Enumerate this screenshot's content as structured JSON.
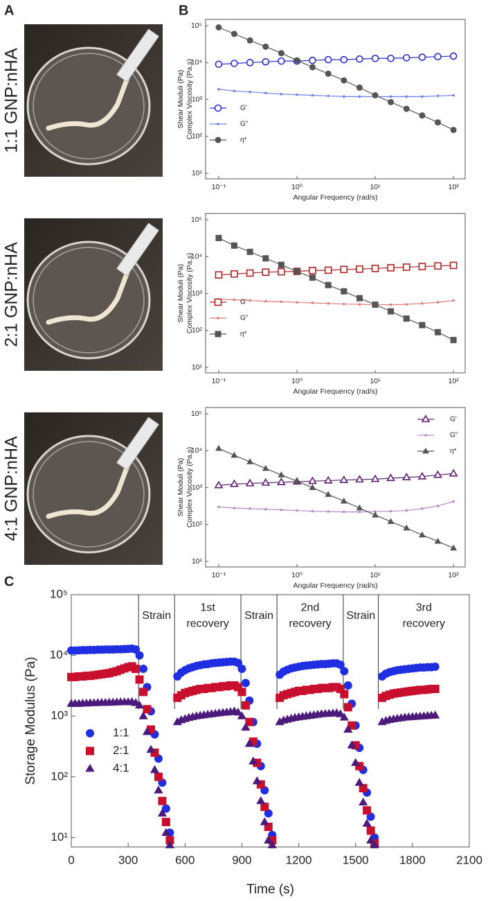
{
  "photos": {
    "panel_label": "A",
    "rows": [
      "1:1 GNP:nHA",
      "2:1 GNP:nHA",
      "4:1 GNP:nHA"
    ]
  },
  "chart_data": [
    {
      "type": "line",
      "panel_label": "B",
      "x_label": "Angular Frequency (rad/s)",
      "y_label": [
        "Shear Moduli (Pa)",
        "Complex Viscosity (Pa.s)"
      ],
      "log_x": true,
      "log_y": true,
      "xlim": [
        0.068,
        141
      ],
      "ylim": [
        7.1,
        148000
      ],
      "xticks": [
        {
          "value": 0.1,
          "label": "10⁻¹"
        },
        {
          "value": 1,
          "label": "10⁰"
        },
        {
          "value": 10,
          "label": "10¹"
        },
        {
          "value": 100,
          "label": "10²"
        }
      ],
      "yticks": [
        {
          "value": 10,
          "label": "10¹"
        },
        {
          "value": 100,
          "label": "10²"
        },
        {
          "value": 1000,
          "label": "10³"
        },
        {
          "value": 10000,
          "label": "10⁴"
        },
        {
          "value": 100000,
          "label": "10⁵"
        }
      ],
      "legend": "lower left",
      "x": [
        0.1,
        0.158,
        0.251,
        0.398,
        0.631,
        1,
        1.58,
        2.51,
        3.98,
        6.31,
        10,
        15.8,
        25.1,
        39.8,
        63.1,
        100
      ],
      "series": [
        {
          "name": "G'",
          "color": "#2b2bd6",
          "marker": "circle-open",
          "values": [
            9000,
            9500,
            10000,
            10500,
            11000,
            11000,
            11500,
            12000,
            12000,
            12500,
            13000,
            13000,
            13500,
            14000,
            14500,
            15000
          ]
        },
        {
          "name": "G''",
          "color": "#6f7fe6",
          "marker": "dot",
          "values": [
            1900,
            1700,
            1600,
            1500,
            1400,
            1350,
            1300,
            1250,
            1200,
            1200,
            1200,
            1200,
            1200,
            1200,
            1250,
            1300
          ]
        },
        {
          "name": "η*",
          "color": "#555555",
          "marker": "circle",
          "values": [
            90000,
            60000,
            40000,
            27000,
            18000,
            11500,
            7500,
            5000,
            3300,
            2100,
            1300,
            850,
            560,
            370,
            240,
            150
          ]
        }
      ]
    },
    {
      "type": "line",
      "x_label": "Angular Frequency (rad/s)",
      "y_label": [
        "Shear Moduli (Pa)",
        "Complex Viscosity (Pa.s)"
      ],
      "log_x": true,
      "log_y": true,
      "xlim": [
        0.068,
        141
      ],
      "ylim": [
        7.1,
        148000
      ],
      "xticks": [
        {
          "value": 0.1,
          "label": "10⁻¹"
        },
        {
          "value": 1,
          "label": "10⁰"
        },
        {
          "value": 10,
          "label": "10¹"
        },
        {
          "value": 100,
          "label": "10²"
        }
      ],
      "yticks": [
        {
          "value": 10,
          "label": "10¹"
        },
        {
          "value": 100,
          "label": "10²"
        },
        {
          "value": 1000,
          "label": "10³"
        },
        {
          "value": 10000,
          "label": "10⁴"
        },
        {
          "value": 100000,
          "label": "10⁵"
        }
      ],
      "legend": "lower left",
      "x": [
        0.1,
        0.158,
        0.251,
        0.398,
        0.631,
        1,
        1.58,
        2.51,
        3.98,
        6.31,
        10,
        15.8,
        25.1,
        39.8,
        63.1,
        100
      ],
      "series": [
        {
          "name": "G'",
          "color": "#b22222",
          "marker": "square-open",
          "values": [
            3200,
            3400,
            3600,
            3800,
            3900,
            4000,
            4200,
            4300,
            4500,
            4600,
            4800,
            5000,
            5200,
            5400,
            5600,
            5800
          ]
        },
        {
          "name": "G''",
          "color": "#e07a7a",
          "marker": "dot",
          "values": [
            700,
            680,
            650,
            620,
            600,
            580,
            560,
            540,
            520,
            510,
            500,
            500,
            510,
            540,
            580,
            650
          ]
        },
        {
          "name": "η*",
          "color": "#555555",
          "marker": "square",
          "values": [
            32000,
            20000,
            13500,
            9000,
            6000,
            4000,
            2700,
            1700,
            1150,
            750,
            500,
            330,
            210,
            140,
            90,
            55
          ]
        }
      ]
    },
    {
      "type": "line",
      "x_label": "Angular Frequency (rad/s)",
      "y_label": [
        "Shear Moduli (Pa)",
        "Complex Viscosity (Pa.s)"
      ],
      "log_x": true,
      "log_y": true,
      "xlim": [
        0.068,
        141
      ],
      "ylim": [
        7.1,
        148000
      ],
      "xticks": [
        {
          "value": 0.1,
          "label": "10⁻¹"
        },
        {
          "value": 1,
          "label": "10⁰"
        },
        {
          "value": 10,
          "label": "10¹"
        },
        {
          "value": 100,
          "label": "10²"
        }
      ],
      "yticks": [
        {
          "value": 10,
          "label": "10¹"
        },
        {
          "value": 100,
          "label": "10²"
        },
        {
          "value": 1000,
          "label": "10³"
        },
        {
          "value": 10000,
          "label": "10⁴"
        },
        {
          "value": 100000,
          "label": "10⁵"
        }
      ],
      "legend": "upper right",
      "x": [
        0.1,
        0.158,
        0.251,
        0.398,
        0.631,
        1,
        1.58,
        2.51,
        3.98,
        6.31,
        10,
        15.8,
        25.1,
        39.8,
        63.1,
        100
      ],
      "series": [
        {
          "name": "G'",
          "color": "#5b1f6e",
          "marker": "triangle-open",
          "values": [
            1150,
            1250,
            1300,
            1350,
            1400,
            1450,
            1500,
            1550,
            1600,
            1650,
            1700,
            1800,
            1900,
            2000,
            2200,
            2400
          ]
        },
        {
          "name": "G''",
          "color": "#b58ac7",
          "marker": "dot",
          "values": [
            300,
            280,
            270,
            260,
            250,
            240,
            230,
            225,
            220,
            220,
            225,
            230,
            240,
            270,
            320,
            420
          ]
        },
        {
          "name": "η*",
          "color": "#555555",
          "marker": "triangle",
          "values": [
            11500,
            7500,
            5000,
            3300,
            2200,
            1500,
            1000,
            650,
            430,
            280,
            180,
            120,
            80,
            52,
            35,
            23
          ]
        }
      ]
    },
    {
      "type": "scatter",
      "panel_label": "C",
      "x_label": "Time (s)",
      "y_label": "Storage Modulus (Pa)",
      "log_y": true,
      "xlim": [
        0,
        2100
      ],
      "ylim": [
        7,
        100000
      ],
      "xticks": [
        0,
        300,
        600,
        900,
        1200,
        1500,
        1800,
        2100
      ],
      "yticks": [
        {
          "value": 10,
          "label": "10¹"
        },
        {
          "value": 100,
          "label": "10²"
        },
        {
          "value": 1000,
          "label": "10³"
        },
        {
          "value": 10000,
          "label": "10⁴"
        },
        {
          "value": 100000,
          "label": "10⁵"
        }
      ],
      "legend": "lower left",
      "phase_boundaries": [
        355,
        545,
        895,
        1085,
        1435,
        1620
      ],
      "phases": [
        [
          "Strain"
        ],
        [
          "1st",
          "recovery"
        ],
        [
          "Strain"
        ],
        [
          "2nd",
          "recovery"
        ],
        [
          "Strain"
        ],
        [
          "3rd",
          "recovery"
        ]
      ],
      "x": [
        0,
        20,
        40,
        60,
        80,
        100,
        120,
        140,
        160,
        180,
        200,
        220,
        240,
        260,
        280,
        300,
        320,
        340,
        360,
        380,
        400,
        420,
        440,
        460,
        480,
        500,
        520,
        560,
        580,
        600,
        620,
        640,
        660,
        680,
        700,
        720,
        740,
        760,
        780,
        800,
        820,
        840,
        860,
        880,
        900,
        920,
        940,
        960,
        980,
        1000,
        1020,
        1040,
        1060,
        1100,
        1120,
        1140,
        1160,
        1180,
        1200,
        1220,
        1240,
        1260,
        1280,
        1300,
        1320,
        1340,
        1360,
        1380,
        1400,
        1420,
        1440,
        1460,
        1480,
        1500,
        1520,
        1540,
        1560,
        1580,
        1600,
        1640,
        1660,
        1680,
        1700,
        1720,
        1740,
        1760,
        1780,
        1800,
        1820,
        1840,
        1860,
        1880,
        1900,
        1920
      ],
      "series": [
        {
          "name": "1:1",
          "color": "#1f2ee0",
          "marker": "circle",
          "values": [
            12000,
            12000,
            12100,
            12200,
            12200,
            12300,
            12300,
            12400,
            12400,
            12500,
            12500,
            12500,
            12600,
            12600,
            12700,
            12800,
            12900,
            12500,
            10000,
            6000,
            3000,
            1200,
            500,
            200,
            80,
            30,
            12,
            4500,
            5200,
            5700,
            6100,
            6400,
            6700,
            6900,
            7100,
            7200,
            7400,
            7500,
            7600,
            7700,
            7800,
            7900,
            7900,
            7500,
            6000,
            3500,
            1800,
            800,
            350,
            150,
            60,
            25,
            11,
            4800,
            5400,
            5800,
            6100,
            6300,
            6500,
            6700,
            6800,
            6900,
            7000,
            7100,
            7200,
            7200,
            7300,
            7400,
            7400,
            7000,
            5500,
            3200,
            1600,
            700,
            300,
            130,
            55,
            22,
            10,
            4500,
            5000,
            5300,
            5500,
            5700,
            5800,
            5900,
            6000,
            6100,
            6200,
            6300,
            6300,
            6400,
            6400,
            6500
          ]
        },
        {
          "name": "2:1",
          "color": "#c8102e",
          "marker": "square",
          "values": [
            4400,
            4400,
            4500,
            4500,
            4600,
            4600,
            4700,
            4800,
            4900,
            5000,
            5100,
            5300,
            5500,
            5800,
            6100,
            6400,
            6600,
            6000,
            4000,
            2500,
            1300,
            600,
            250,
            100,
            40,
            18,
            9,
            2000,
            2200,
            2400,
            2500,
            2600,
            2700,
            2800,
            2800,
            2900,
            2900,
            3000,
            3000,
            3100,
            3100,
            3200,
            3200,
            3000,
            2500,
            1500,
            800,
            380,
            170,
            75,
            32,
            15,
            9,
            2000,
            2200,
            2300,
            2400,
            2500,
            2600,
            2600,
            2700,
            2700,
            2800,
            2800,
            2900,
            2900,
            2900,
            3000,
            3000,
            2800,
            2300,
            1400,
            700,
            330,
            150,
            65,
            28,
            13,
            8,
            2000,
            2150,
            2250,
            2350,
            2400,
            2450,
            2500,
            2550,
            2600,
            2650,
            2700,
            2700,
            2750,
            2800,
            2800
          ]
        },
        {
          "name": "4:1",
          "color": "#4b1a7a",
          "marker": "triangle",
          "values": [
            1600,
            1600,
            1600,
            1620,
            1620,
            1640,
            1640,
            1650,
            1660,
            1660,
            1670,
            1680,
            1690,
            1700,
            1700,
            1700,
            1710,
            1650,
            1500,
            1000,
            550,
            280,
            130,
            60,
            25,
            12,
            7.5,
            800,
            860,
            900,
            940,
            970,
            1000,
            1020,
            1040,
            1060,
            1080,
            1100,
            1120,
            1140,
            1150,
            1170,
            1200,
            1150,
            1000,
            650,
            350,
            180,
            85,
            40,
            18,
            9,
            7.5,
            800,
            850,
            880,
            910,
            940,
            960,
            980,
            1000,
            1020,
            1040,
            1060,
            1080,
            1090,
            1100,
            1110,
            1120,
            1080,
            950,
            600,
            330,
            170,
            80,
            38,
            17,
            9,
            7.5,
            800,
            840,
            870,
            890,
            910,
            930,
            950,
            960,
            970,
            980,
            990,
            1000,
            1010,
            1020,
            1030
          ]
        }
      ]
    }
  ]
}
